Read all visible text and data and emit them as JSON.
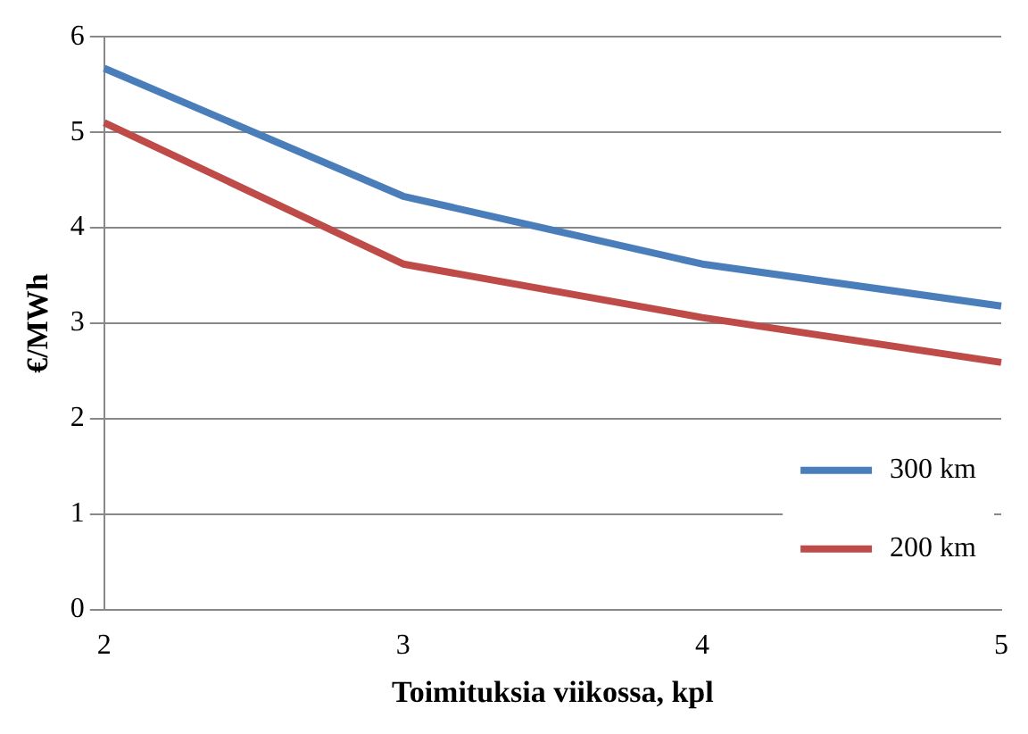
{
  "chart_data": {
    "type": "line",
    "xlabel": "Toimituksia viikossa, kpl",
    "ylabel": "€/MWh",
    "categories": [
      "2",
      "3",
      "4",
      "5"
    ],
    "series": [
      {
        "name": "300 km",
        "color": "#4a7ebb",
        "values": [
          5.67,
          4.33,
          3.62,
          3.18
        ]
      },
      {
        "name": "200 km",
        "color": "#be4b48",
        "values": [
          5.1,
          3.62,
          3.06,
          2.59
        ]
      }
    ],
    "ylim": [
      0,
      6
    ],
    "yticks": [
      0,
      1,
      2,
      3,
      4,
      5,
      6
    ],
    "grid": "y",
    "legend": "bottom right",
    "marker": "none",
    "line_style": "solid"
  }
}
